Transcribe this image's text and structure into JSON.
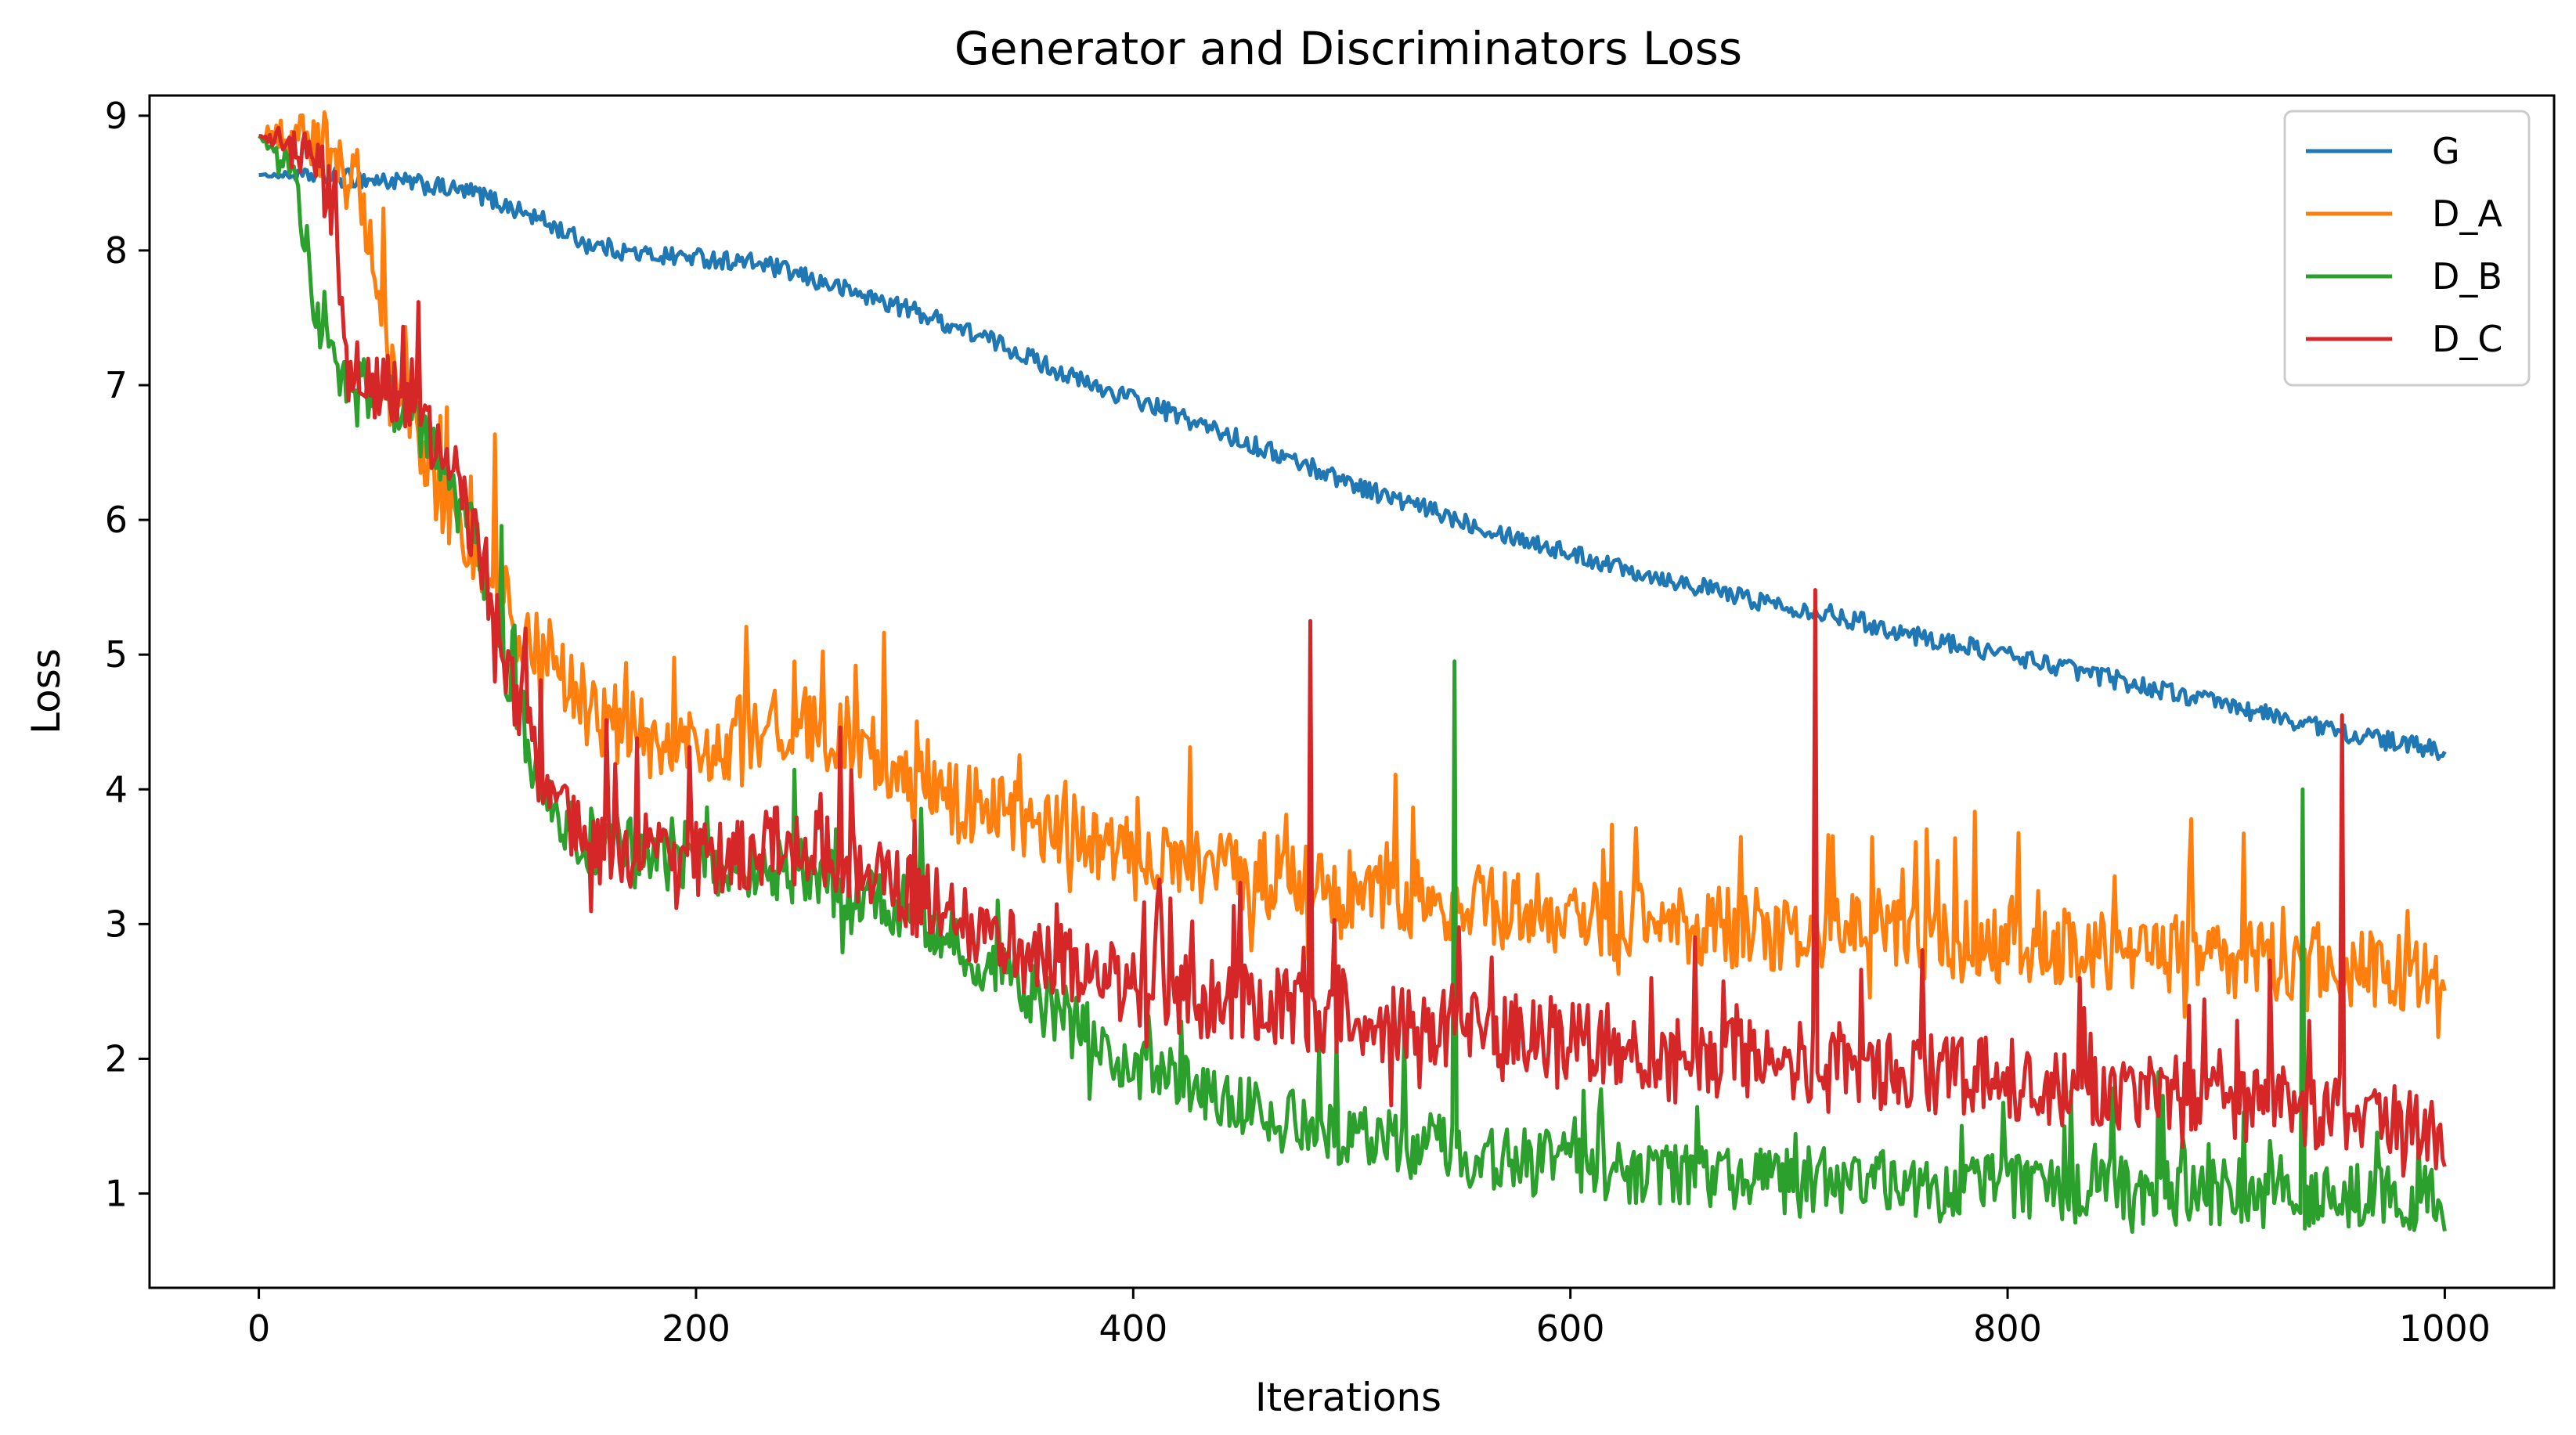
{
  "chart_data": {
    "type": "line",
    "title": "Generator and Discriminators Loss",
    "xlabel": "Iterations",
    "ylabel": "Loss",
    "xlim": [
      -50,
      1050
    ],
    "ylim": [
      0.3,
      9.15
    ],
    "xticks": [
      0,
      200,
      400,
      600,
      800,
      1000
    ],
    "yticks": [
      1,
      2,
      3,
      4,
      5,
      6,
      7,
      8,
      9
    ],
    "grid": false,
    "legend_position": "top-right",
    "series": [
      {
        "name": "G",
        "color": "#1f77b4",
        "anchors": [
          [
            0,
            8.56
          ],
          [
            30,
            8.55
          ],
          [
            70,
            8.5
          ],
          [
            100,
            8.42
          ],
          [
            130,
            8.22
          ],
          [
            150,
            8.05
          ],
          [
            175,
            7.97
          ],
          [
            200,
            7.95
          ],
          [
            230,
            7.9
          ],
          [
            260,
            7.75
          ],
          [
            300,
            7.55
          ],
          [
            340,
            7.3
          ],
          [
            380,
            7.0
          ],
          [
            400,
            6.9
          ],
          [
            440,
            6.65
          ],
          [
            480,
            6.4
          ],
          [
            520,
            6.15
          ],
          [
            560,
            5.95
          ],
          [
            600,
            5.75
          ],
          [
            640,
            5.58
          ],
          [
            680,
            5.42
          ],
          [
            720,
            5.3
          ],
          [
            760,
            5.13
          ],
          [
            800,
            5.0
          ],
          [
            840,
            4.85
          ],
          [
            880,
            4.7
          ],
          [
            920,
            4.55
          ],
          [
            960,
            4.4
          ],
          [
            1000,
            4.28
          ]
        ],
        "noise": 0.07,
        "spikes": []
      },
      {
        "name": "D_A",
        "color": "#ff7f0e",
        "anchors": [
          [
            0,
            8.85
          ],
          [
            25,
            8.8
          ],
          [
            40,
            8.6
          ],
          [
            50,
            8.1
          ],
          [
            60,
            7.0
          ],
          [
            70,
            6.8
          ],
          [
            80,
            6.3
          ],
          [
            90,
            6.0
          ],
          [
            100,
            5.7
          ],
          [
            120,
            5.2
          ],
          [
            150,
            4.6
          ],
          [
            180,
            4.35
          ],
          [
            200,
            4.3
          ],
          [
            240,
            4.5
          ],
          [
            270,
            4.4
          ],
          [
            300,
            4.0
          ],
          [
            350,
            3.75
          ],
          [
            400,
            3.5
          ],
          [
            450,
            3.35
          ],
          [
            500,
            3.25
          ],
          [
            550,
            3.15
          ],
          [
            600,
            3.05
          ],
          [
            650,
            3.0
          ],
          [
            700,
            2.95
          ],
          [
            750,
            2.9
          ],
          [
            800,
            2.85
          ],
          [
            850,
            2.8
          ],
          [
            900,
            2.75
          ],
          [
            950,
            2.7
          ],
          [
            1000,
            2.6
          ]
        ],
        "noise": 0.3,
        "spikes": []
      },
      {
        "name": "D_B",
        "color": "#2ca02c",
        "anchors": [
          [
            0,
            8.85
          ],
          [
            15,
            8.6
          ],
          [
            22,
            8.0
          ],
          [
            28,
            7.3
          ],
          [
            40,
            6.95
          ],
          [
            60,
            6.9
          ],
          [
            80,
            6.6
          ],
          [
            100,
            5.8
          ],
          [
            115,
            4.8
          ],
          [
            130,
            4.0
          ],
          [
            140,
            3.7
          ],
          [
            160,
            3.55
          ],
          [
            200,
            3.45
          ],
          [
            250,
            3.35
          ],
          [
            300,
            3.1
          ],
          [
            350,
            2.5
          ],
          [
            400,
            1.95
          ],
          [
            450,
            1.6
          ],
          [
            500,
            1.45
          ],
          [
            550,
            1.3
          ],
          [
            600,
            1.2
          ],
          [
            650,
            1.15
          ],
          [
            700,
            1.1
          ],
          [
            750,
            1.08
          ],
          [
            800,
            1.05
          ],
          [
            850,
            1.02
          ],
          [
            900,
            1.0
          ],
          [
            950,
            0.98
          ],
          [
            1000,
            0.95
          ]
        ],
        "noise": 0.25,
        "spikes": [
          [
            547,
            4.95
          ],
          [
            935,
            4.0
          ],
          [
            1000,
            0.72
          ]
        ]
      },
      {
        "name": "D_C",
        "color": "#d62728",
        "anchors": [
          [
            0,
            8.85
          ],
          [
            25,
            8.7
          ],
          [
            35,
            8.3
          ],
          [
            40,
            7.2
          ],
          [
            50,
            7.0
          ],
          [
            70,
            6.9
          ],
          [
            90,
            6.3
          ],
          [
            110,
            5.2
          ],
          [
            125,
            4.2
          ],
          [
            140,
            3.8
          ],
          [
            160,
            3.55
          ],
          [
            200,
            3.5
          ],
          [
            250,
            3.6
          ],
          [
            300,
            3.2
          ],
          [
            350,
            2.75
          ],
          [
            400,
            2.55
          ],
          [
            450,
            2.4
          ],
          [
            500,
            2.3
          ],
          [
            550,
            2.2
          ],
          [
            600,
            2.15
          ],
          [
            650,
            2.05
          ],
          [
            700,
            1.95
          ],
          [
            750,
            1.9
          ],
          [
            800,
            1.85
          ],
          [
            850,
            1.75
          ],
          [
            900,
            1.7
          ],
          [
            950,
            1.6
          ],
          [
            1000,
            1.4
          ]
        ],
        "noise": 0.3,
        "spikes": [
          [
            481,
            5.25
          ],
          [
            712,
            5.48
          ],
          [
            953,
            4.55
          ],
          [
            1000,
            1.2
          ]
        ]
      }
    ]
  }
}
